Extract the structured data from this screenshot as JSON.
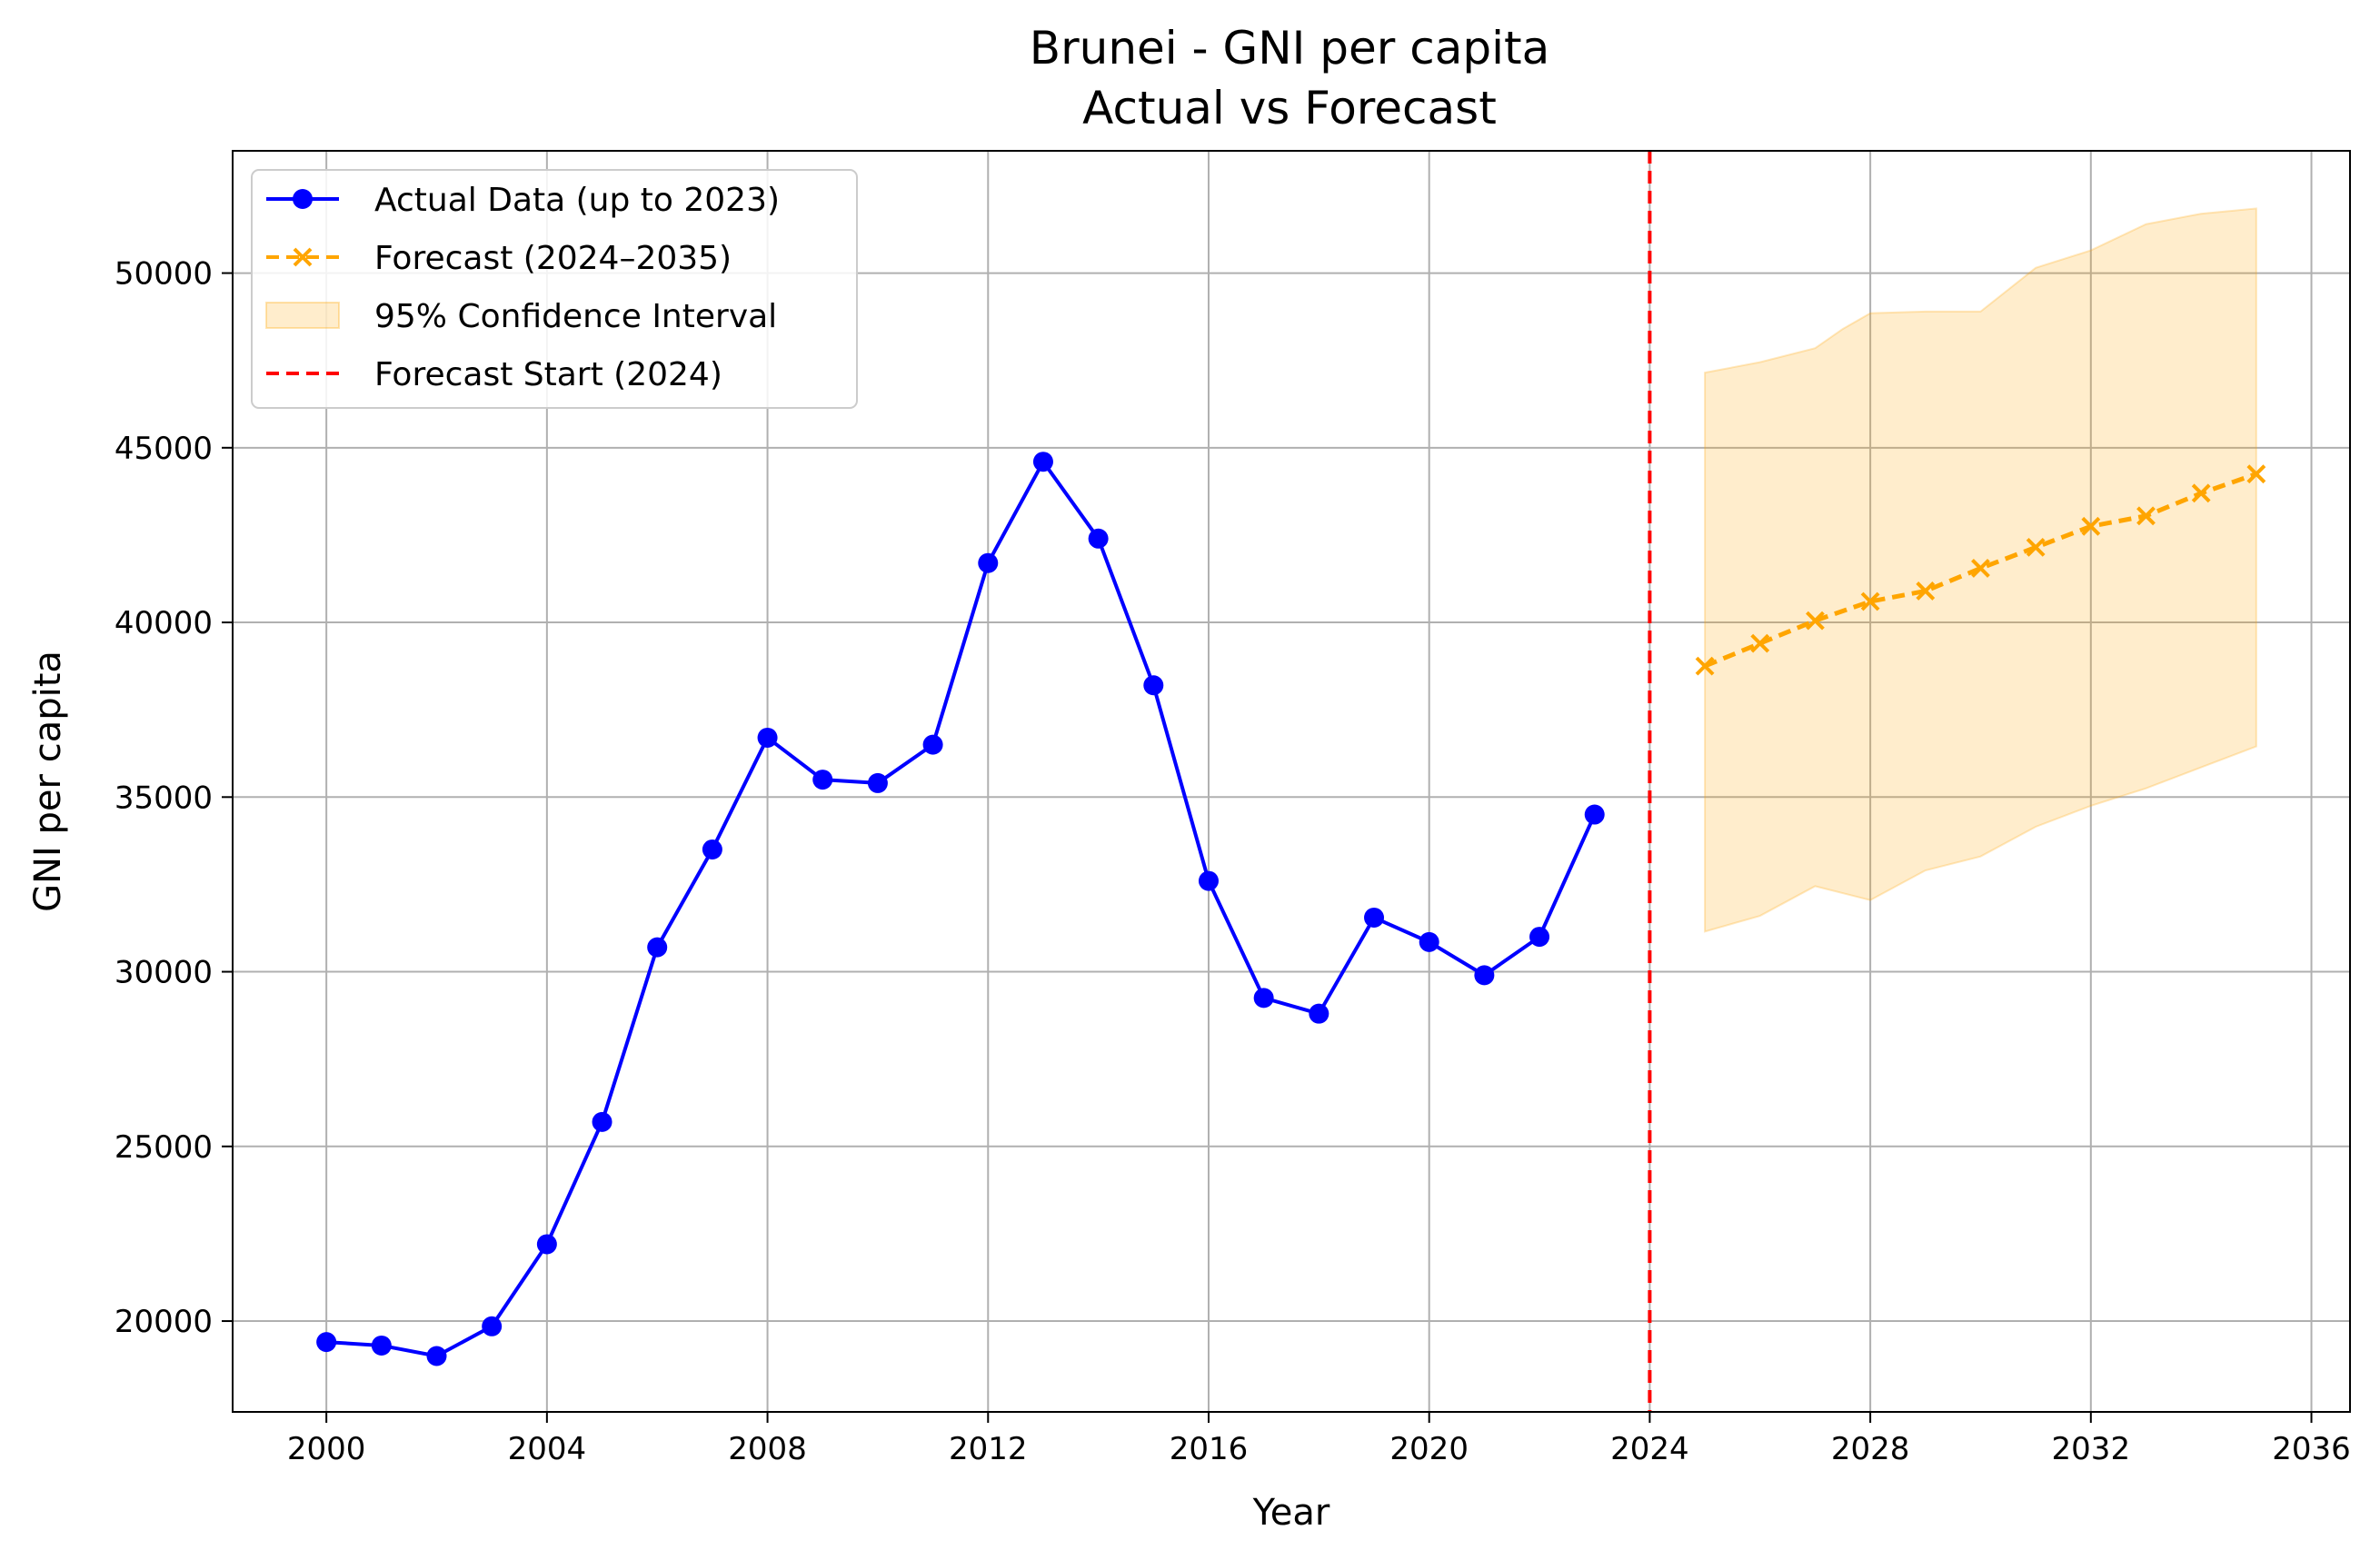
{
  "chart_data": {
    "type": "line",
    "title": "Brunei - GNI per capita",
    "subtitle": "Actual vs Forecast",
    "xlabel": "Year",
    "ylabel": "GNI per capita",
    "xlim": [
      1998.3,
      2036.7
    ],
    "ylim": [
      17400,
      53500
    ],
    "xticks": [
      2000,
      2004,
      2008,
      2012,
      2016,
      2020,
      2024,
      2028,
      2032,
      2036
    ],
    "yticks": [
      20000,
      25000,
      30000,
      35000,
      40000,
      45000,
      50000
    ],
    "grid": true,
    "legend_position": "top-left",
    "colors": {
      "actual": "#0000ff",
      "forecast": "#ffa500",
      "ci": "#ffa500",
      "forecast_start": "#ff0000"
    },
    "series": [
      {
        "name": "Actual Data (up to 2023)",
        "style": "solid-circle-marker",
        "x": [
          2000,
          2001,
          2002,
          2003,
          2004,
          2005,
          2006,
          2007,
          2008,
          2009,
          2010,
          2011,
          2012,
          2013,
          2014,
          2015,
          2016,
          2017,
          2018,
          2019,
          2020,
          2021,
          2022,
          2023
        ],
        "y": [
          19400,
          19300,
          19000,
          19850,
          22200,
          25700,
          30700,
          33500,
          36700,
          35500,
          35400,
          36500,
          41700,
          44600,
          42400,
          38200,
          32600,
          29250,
          28800,
          31550,
          30850,
          29900,
          31000,
          34500
        ]
      },
      {
        "name": "Forecast (2024–2035)",
        "style": "dashed-x-marker",
        "x": [
          2025,
          2026,
          2027,
          2028,
          2029,
          2030,
          2031,
          2032,
          2033,
          2034,
          2035
        ],
        "y": [
          38750,
          39400,
          40050,
          40600,
          40900,
          41550,
          42150,
          42750,
          43050,
          43700,
          44250
        ]
      }
    ],
    "confidence_interval": {
      "name": "95% Confidence Interval",
      "x": [
        2025,
        2026,
        2027,
        2027.5,
        2028,
        2029,
        2030,
        2031,
        2032,
        2033,
        2034,
        2035
      ],
      "lower": [
        31150,
        31600,
        32450,
        32250,
        32050,
        32900,
        33300,
        34150,
        34750,
        35250,
        35850,
        36450
      ],
      "upper": [
        47150,
        47450,
        47850,
        48400,
        48850,
        48900,
        48900,
        50150,
        50650,
        51400,
        51700,
        51850
      ]
    },
    "forecast_start": {
      "name": "Forecast Start (2024)",
      "x": 2024
    }
  }
}
